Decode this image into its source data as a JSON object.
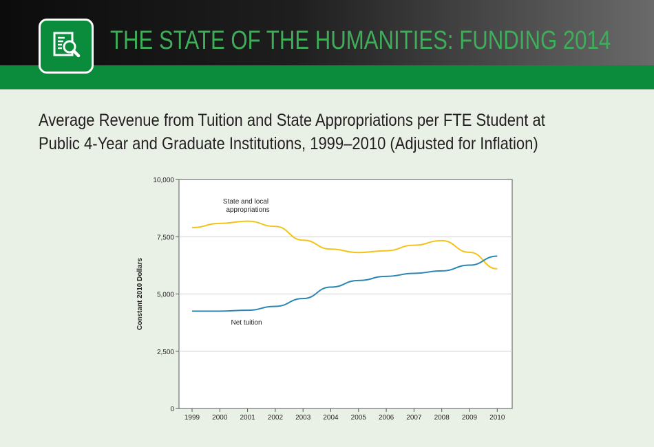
{
  "header": {
    "title": "THE STATE OF THE HUMANITIES: FUNDING 2014",
    "logo_icon": "document-magnifier-icon"
  },
  "colors": {
    "banner_green": "#0a8c3c",
    "title_green": "#3fae5a",
    "state_line": "#f2c318",
    "tuition_line": "#2a86b5"
  },
  "chart_data": {
    "type": "line",
    "title_line1": "Average Revenue from Tuition and State Appropriations per FTE Student at",
    "title_line2": "Public 4-Year and Graduate Institutions, 1999–2010 (Adjusted for Inflation)",
    "xlabel": "",
    "ylabel": "Constant 2010 Dollars",
    "x": [
      1999,
      2000,
      2001,
      2002,
      2003,
      2004,
      2005,
      2006,
      2007,
      2008,
      2009,
      2010
    ],
    "x_tick_labels": [
      "1999",
      "2000",
      "2001",
      "2002",
      "2003",
      "2004",
      "2005",
      "2006",
      "2007",
      "2008",
      "2009",
      "2010"
    ],
    "ylim": [
      0,
      10000
    ],
    "y_ticks": [
      0,
      2500,
      5000,
      7500,
      10000
    ],
    "y_tick_labels": [
      "0",
      "2,500",
      "5,000",
      "7,500",
      "10,000"
    ],
    "grid": true,
    "series": [
      {
        "name": "State and local appropriations",
        "label_line1": "State and local",
        "label_line2": "appropriations",
        "values": [
          7900,
          8080,
          8180,
          7950,
          7350,
          6960,
          6810,
          6890,
          7130,
          7330,
          6820,
          6100
        ]
      },
      {
        "name": "Net tuition",
        "label_line1": "Net tuition",
        "values": [
          4250,
          4250,
          4290,
          4460,
          4800,
          5300,
          5590,
          5770,
          5900,
          6010,
          6260,
          6650
        ]
      }
    ]
  }
}
